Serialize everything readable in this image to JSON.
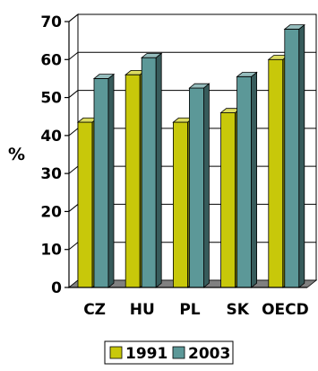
{
  "chart_data": {
    "type": "bar",
    "categories": [
      "CZ",
      "HU",
      "PL",
      "SK",
      "OECD"
    ],
    "series": [
      {
        "name": "1991",
        "values": [
          43.5,
          56,
          43.5,
          46,
          60
        ],
        "color": "#c8c80a"
      },
      {
        "name": "2003",
        "values": [
          55,
          60.5,
          52.5,
          55.5,
          68
        ],
        "color": "#5c9898"
      }
    ],
    "ylabel": "%",
    "xlabel": "",
    "ylim": [
      0,
      70
    ],
    "yticks": [
      0,
      10,
      20,
      30,
      40,
      50,
      60,
      70
    ],
    "grid": true,
    "legend_position": "bottom",
    "style": "3d-bar",
    "floor_color": "#808080"
  }
}
